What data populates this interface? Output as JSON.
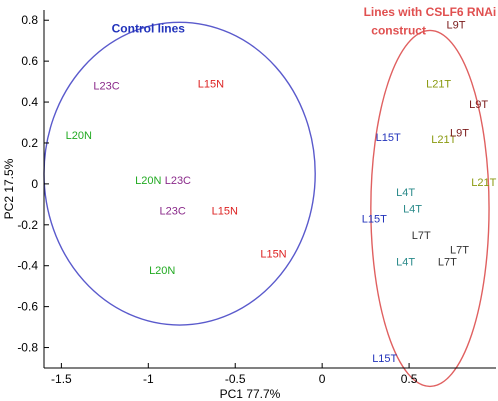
{
  "chart_data": {
    "type": "scatter",
    "xlabel": "PC1 77.7%",
    "ylabel": "PC2 17.5%",
    "xlim": [
      -1.6,
      1.0
    ],
    "ylim": [
      -0.9,
      0.85
    ],
    "xticks": [
      -1.5,
      -1,
      -0.5,
      0,
      0.5
    ],
    "xtick_labels": [
      "-1.5",
      "-1",
      "-0.5",
      "0",
      "0.5"
    ],
    "yticks": [
      0.8,
      0.6,
      0.4,
      0.2,
      0,
      -0.2,
      -0.4,
      -0.6,
      -0.8
    ],
    "ytick_labels": [
      "0.8",
      "0.6",
      "0.4",
      "0.2",
      "0",
      "-0.2",
      "-0.4",
      "-0.6",
      "-0.8"
    ],
    "grid": false,
    "colors": {
      "L20N": "#22aa22",
      "L23C": "#8a2a8a",
      "L15N": "#dd2222",
      "L9T": "#7a1a1a",
      "L21T": "#8a9a10",
      "L15T": "#2233bb",
      "L4T": "#2a8a8a",
      "L7T": "#333333"
    },
    "points": [
      {
        "label": "L20N",
        "x": -1.4,
        "y": 0.24
      },
      {
        "label": "L23C",
        "x": -1.24,
        "y": 0.48
      },
      {
        "label": "L20N",
        "x": -1.0,
        "y": 0.02
      },
      {
        "label": "L23C",
        "x": -0.83,
        "y": 0.02
      },
      {
        "label": "L23C",
        "x": -0.86,
        "y": -0.13
      },
      {
        "label": "L15N",
        "x": -0.64,
        "y": 0.49
      },
      {
        "label": "L15N",
        "x": -0.56,
        "y": -0.13
      },
      {
        "label": "L15N",
        "x": -0.28,
        "y": -0.34
      },
      {
        "label": "L20N",
        "x": -0.92,
        "y": -0.42
      },
      {
        "label": "L9T",
        "x": 0.77,
        "y": 0.78
      },
      {
        "label": "L21T",
        "x": 0.67,
        "y": 0.49
      },
      {
        "label": "L9T",
        "x": 0.9,
        "y": 0.39
      },
      {
        "label": "L21T",
        "x": 0.7,
        "y": 0.22
      },
      {
        "label": "L9T",
        "x": 0.79,
        "y": 0.25
      },
      {
        "label": "L21T",
        "x": 0.93,
        "y": 0.01
      },
      {
        "label": "L15T",
        "x": 0.38,
        "y": 0.23
      },
      {
        "label": "L4T",
        "x": 0.48,
        "y": -0.04
      },
      {
        "label": "L4T",
        "x": 0.52,
        "y": -0.12
      },
      {
        "label": "L15T",
        "x": 0.3,
        "y": -0.17
      },
      {
        "label": "L7T",
        "x": 0.57,
        "y": -0.25
      },
      {
        "label": "L7T",
        "x": 0.79,
        "y": -0.32
      },
      {
        "label": "L4T",
        "x": 0.48,
        "y": -0.38
      },
      {
        "label": "L7T",
        "x": 0.72,
        "y": -0.38
      },
      {
        "label": "L15T",
        "x": 0.36,
        "y": -0.85
      }
    ],
    "groups": [
      {
        "name": "Control lines",
        "color": "#5a5acc",
        "text_color": "#2233bb",
        "center": [
          -0.82,
          0.05
        ],
        "radius": [
          0.78,
          0.74
        ]
      },
      {
        "name": "Lines with CSLF6 RNAi construct",
        "color": "#e06060",
        "text_color": "#e05050",
        "center": [
          0.62,
          -0.12
        ],
        "radius": [
          0.34,
          0.87
        ]
      }
    ],
    "annotations": [
      {
        "text": "Control lines",
        "x": -1.0,
        "y": 0.74,
        "color": "#2233bb"
      },
      {
        "text": "Lines with CSLF6 RNAi",
        "x": 0.62,
        "y": 0.82,
        "color": "#e05050"
      },
      {
        "text": "construct",
        "x": 0.44,
        "y": 0.73,
        "color": "#e05050"
      }
    ]
  }
}
